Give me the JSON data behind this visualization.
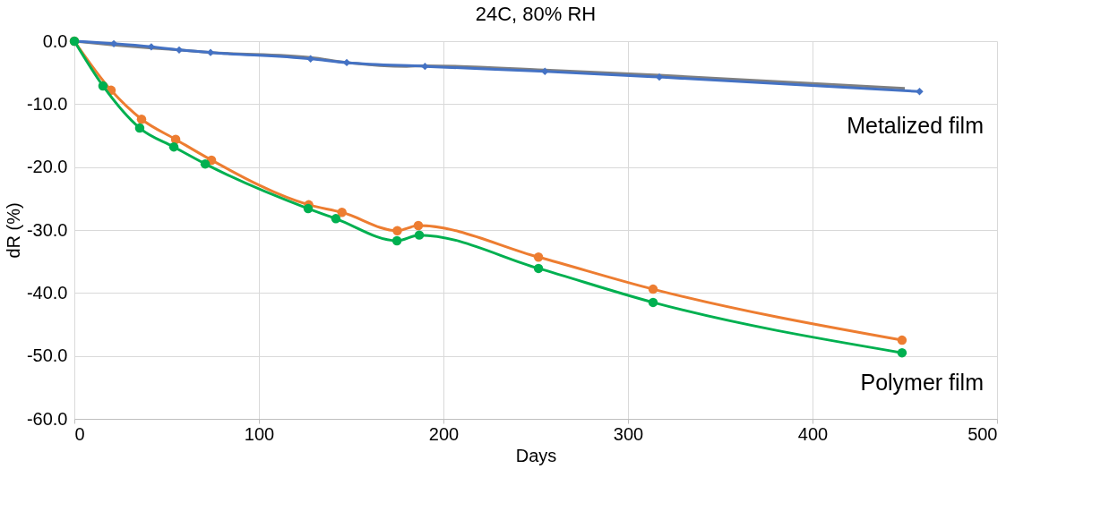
{
  "chart_data": {
    "type": "line",
    "title": "24C, 80% RH",
    "xlabel": "Days",
    "ylabel": "dR (%)",
    "xlim": [
      0,
      500
    ],
    "xticks": [
      0,
      100,
      200,
      300,
      400,
      500
    ],
    "ylim": [
      -60,
      0
    ],
    "yticks": [
      {
        "value": 0,
        "label": "0.0"
      },
      {
        "value": -10,
        "label": "-10.0"
      },
      {
        "value": -20,
        "label": "-20.0"
      },
      {
        "value": -30,
        "label": "-30.0"
      },
      {
        "value": -40,
        "label": "-40.0"
      },
      {
        "value": -50,
        "label": "-50.0"
      },
      {
        "value": -60,
        "label": "-60.0"
      }
    ],
    "grid": true,
    "line_style": "solid",
    "series": [
      {
        "color": "#808080",
        "marker": "none",
        "x": [
          0,
          21,
          42,
          57,
          74,
          128,
          148,
          180,
          190,
          255,
          317,
          450
        ],
        "values": [
          0,
          -0.6,
          -1.1,
          -1.4,
          -1.8,
          -2.6,
          -3.4,
          -4.0,
          -3.9,
          -4.6,
          -5.4,
          -7.5
        ]
      },
      {
        "color": "#4472c4",
        "marker": "diamond",
        "x": [
          0,
          21.4,
          41.7,
          56.8,
          73.8,
          128,
          147.6,
          190,
          255,
          317,
          458
        ],
        "values": [
          0,
          -0.4,
          -0.9,
          -1.4,
          -1.8,
          -2.8,
          -3.4,
          -4.0,
          -4.8,
          -5.7,
          -8.0
        ]
      },
      {
        "color": "#ed7d31",
        "marker": "circle",
        "x": [
          0,
          19.9,
          36.4,
          54.9,
          74.3,
          127,
          145,
          175,
          186.4,
          251.5,
          313.6,
          448.5
        ],
        "values": [
          0,
          -7.8,
          -12.4,
          -15.6,
          -18.9,
          -26.0,
          -27.2,
          -30.1,
          -29.3,
          -34.3,
          -39.4,
          -47.5
        ]
      },
      {
        "color": "#00b050",
        "marker": "circle",
        "x": [
          0,
          15.5,
          35.4,
          53.9,
          70.9,
          126.7,
          141.7,
          174.8,
          186.9,
          251.5,
          313.6,
          448.5
        ],
        "values": [
          0,
          -7.1,
          -13.8,
          -16.8,
          -19.5,
          -26.6,
          -28.2,
          -31.7,
          -30.8,
          -36.1,
          -41.5,
          -49.5
        ]
      }
    ],
    "annotations": [
      "Metalized film",
      "Polymer film"
    ]
  }
}
